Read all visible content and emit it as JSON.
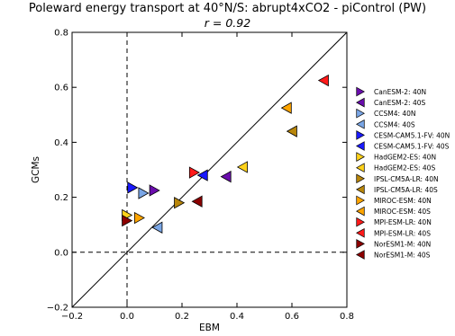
{
  "chart_data": {
    "type": "scatter",
    "title": "Poleward energy transport at 40°N/S: abrupt4xCO2 - piControl (PW)",
    "subtitle": "r = 0.92",
    "xlabel": "EBM",
    "ylabel": "GCMs",
    "xlim": [
      -0.2,
      0.8
    ],
    "ylim": [
      -0.2,
      0.8
    ],
    "x_ticks": [
      "−0.2",
      "0.0",
      "0.2",
      "0.4",
      "0.6",
      "0.8"
    ],
    "y_ticks": [
      "−0.2",
      "0.0",
      "0.2",
      "0.4",
      "0.6",
      "0.8"
    ],
    "x_tick_values": [
      -0.2,
      0.0,
      0.2,
      0.4,
      0.6,
      0.8
    ],
    "y_tick_values": [
      -0.2,
      0.0,
      0.2,
      0.4,
      0.6,
      0.8
    ],
    "one_to_one_line": true,
    "zero_lines": "dashed",
    "legend_position": "right",
    "series": [
      {
        "name": "CanESM-2: 40N",
        "color": "#6a0dad",
        "marker": "triangle-right",
        "x": 0.1,
        "y": 0.225
      },
      {
        "name": "CanESM-2: 40S",
        "color": "#6a0dad",
        "marker": "triangle-left",
        "x": 0.36,
        "y": 0.275
      },
      {
        "name": "CCSM4: 40N",
        "color": "#7aa6e6",
        "marker": "triangle-right",
        "x": 0.06,
        "y": 0.215
      },
      {
        "name": "CCSM4: 40S",
        "color": "#7aa6e6",
        "marker": "triangle-left",
        "x": 0.11,
        "y": 0.09
      },
      {
        "name": "CESM-CAM5.1-FV: 40N",
        "color": "#1a1aff",
        "marker": "triangle-right",
        "x": 0.02,
        "y": 0.235
      },
      {
        "name": "CESM-CAM5.1-FV: 40S",
        "color": "#1a1aff",
        "marker": "triangle-left",
        "x": 0.275,
        "y": 0.28
      },
      {
        "name": "HadGEM2-ES: 40N",
        "color": "#ffd21a",
        "marker": "triangle-right",
        "x": 0.0,
        "y": 0.135
      },
      {
        "name": "HadGEM2-ES: 40S",
        "color": "#ffd21a",
        "marker": "triangle-left",
        "x": 0.42,
        "y": 0.31
      },
      {
        "name": "IPSL-CM5A-LR: 40N",
        "color": "#b8860b",
        "marker": "triangle-right",
        "x": 0.19,
        "y": 0.18
      },
      {
        "name": "IPSL-CM5A-LR: 40S",
        "color": "#b8860b",
        "marker": "triangle-left",
        "x": 0.6,
        "y": 0.44
      },
      {
        "name": "MIROC-ESM: 40N",
        "color": "#ffa500",
        "marker": "triangle-right",
        "x": 0.045,
        "y": 0.125
      },
      {
        "name": "MIROC-ESM: 40S",
        "color": "#ffa500",
        "marker": "triangle-left",
        "x": 0.58,
        "y": 0.525
      },
      {
        "name": "MPI-ESM-LR: 40N",
        "color": "#ff1a1a",
        "marker": "triangle-right",
        "x": 0.245,
        "y": 0.29
      },
      {
        "name": "MPI-ESM-LR: 40S",
        "color": "#ff1a1a",
        "marker": "triangle-left",
        "x": 0.715,
        "y": 0.625
      },
      {
        "name": "NorESM1-M: 40N",
        "color": "#8b0000",
        "marker": "triangle-right",
        "x": 0.0,
        "y": 0.115
      },
      {
        "name": "NorESM1-M: 40S",
        "color": "#8b0000",
        "marker": "triangle-left",
        "x": 0.255,
        "y": 0.185
      }
    ]
  }
}
